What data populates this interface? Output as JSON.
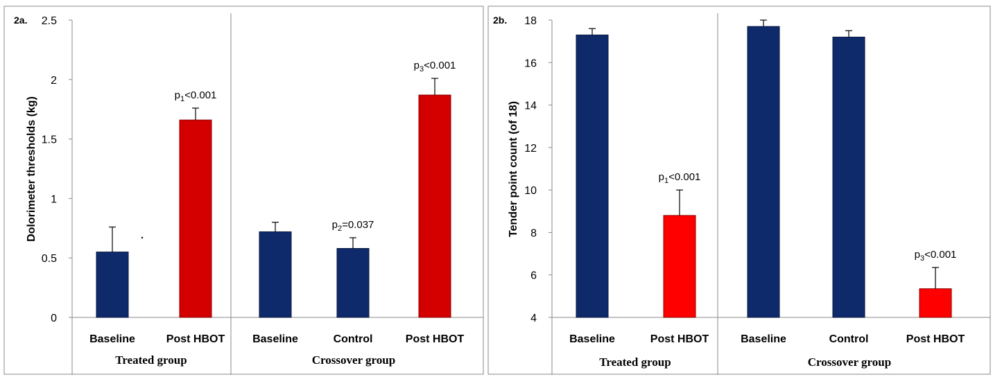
{
  "colors": {
    "baseline": "#0f2a6b",
    "post": "#d40000",
    "post_b": "#ff0000",
    "frame": "#888888"
  },
  "chart_data": [
    {
      "type": "bar",
      "panel_label": "2a.",
      "ylabel": "Dolorimeter thresholds (kg)",
      "ylim": [
        0,
        2.5
      ],
      "yticks": [
        "0",
        "0.5",
        "1",
        "1.5",
        "2",
        "2.5"
      ],
      "ytick_values": [
        0,
        0.5,
        1,
        1.5,
        2,
        2.5
      ],
      "groups": [
        {
          "name": "Treated group",
          "categories": [
            "Baseline",
            "Post HBOT"
          ]
        },
        {
          "name": "Crossover group",
          "categories": [
            "Baseline",
            "Control",
            "Post HBOT"
          ]
        }
      ],
      "bars": [
        {
          "category": "Baseline",
          "group": "Treated group",
          "value": 0.55,
          "error": 0.21,
          "color_key": "baseline",
          "p_label": ""
        },
        {
          "category": "Post HBOT",
          "group": "Treated group",
          "value": 1.66,
          "error": 0.1,
          "color_key": "post",
          "p_label": "p1<0.001"
        },
        {
          "category": "Baseline",
          "group": "Crossover group",
          "value": 0.72,
          "error": 0.08,
          "color_key": "baseline",
          "p_label": ""
        },
        {
          "category": "Control",
          "group": "Crossover group",
          "value": 0.58,
          "error": 0.09,
          "color_key": "baseline",
          "p_label": "p2=0.037"
        },
        {
          "category": "Post HBOT",
          "group": "Crossover group",
          "value": 1.87,
          "error": 0.14,
          "color_key": "post",
          "p_label": "p3<0.001"
        }
      ]
    },
    {
      "type": "bar",
      "panel_label": "2b.",
      "ylabel": "Tender point count (of 18)",
      "ylim": [
        4,
        18
      ],
      "yticks": [
        "4",
        "6",
        "8",
        "10",
        "12",
        "14",
        "16",
        "18"
      ],
      "ytick_values": [
        4,
        6,
        8,
        10,
        12,
        14,
        16,
        18
      ],
      "groups": [
        {
          "name": "Treated group",
          "categories": [
            "Baseline",
            "Post HBOT"
          ]
        },
        {
          "name": "Crossover group",
          "categories": [
            "Baseline",
            "Control",
            "Post HBOT"
          ]
        }
      ],
      "bars": [
        {
          "category": "Baseline",
          "group": "Treated group",
          "value": 17.3,
          "error": 0.3,
          "color_key": "baseline",
          "p_label": ""
        },
        {
          "category": "Post HBOT",
          "group": "Treated group",
          "value": 8.8,
          "error": 1.2,
          "color_key": "post_b",
          "p_label": "p1<0.001"
        },
        {
          "category": "Baseline",
          "group": "Crossover group",
          "value": 17.7,
          "error": 0.3,
          "color_key": "baseline",
          "p_label": ""
        },
        {
          "category": "Control",
          "group": "Crossover group",
          "value": 17.2,
          "error": 0.3,
          "color_key": "baseline",
          "p_label": ""
        },
        {
          "category": "Post HBOT",
          "group": "Crossover group",
          "value": 5.35,
          "error": 1.0,
          "color_key": "post_b",
          "p_label": "p3<0.001"
        }
      ]
    }
  ]
}
